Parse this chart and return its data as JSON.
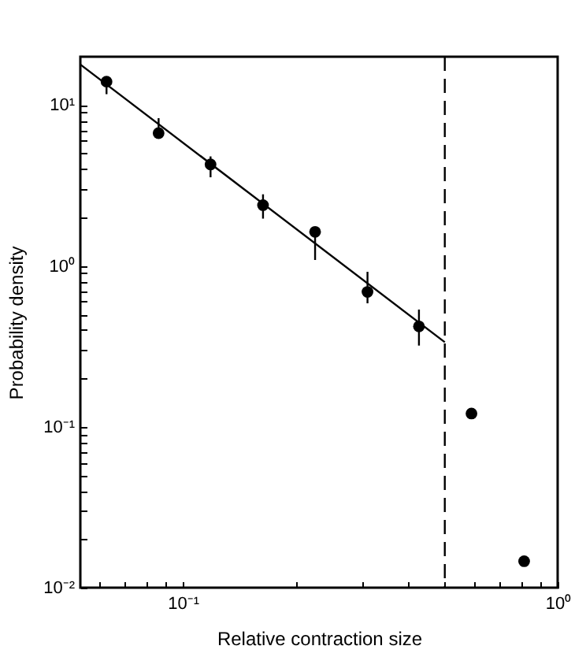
{
  "chart_data": {
    "type": "scatter",
    "xlabel": "Relative contraction size",
    "ylabel": "Probability density",
    "log": "xy",
    "grid": false,
    "xlim": [
      0.0533,
      1
    ],
    "ylim": [
      0.01,
      20
    ],
    "xticks": [
      {
        "value": 0.06,
        "label": null
      },
      {
        "value": 0.07,
        "label": null
      },
      {
        "value": 0.08,
        "label": null
      },
      {
        "value": 0.09,
        "label": null
      },
      {
        "value": 0.1,
        "label": "10⁻¹"
      },
      {
        "value": 0.2,
        "label": null
      },
      {
        "value": 0.3,
        "label": null
      },
      {
        "value": 0.4,
        "label": null
      },
      {
        "value": 0.5,
        "label": null
      },
      {
        "value": 0.6,
        "label": null
      },
      {
        "value": 0.7,
        "label": null
      },
      {
        "value": 0.8,
        "label": null
      },
      {
        "value": 0.9,
        "label": null
      },
      {
        "value": 1,
        "label": "10⁰"
      }
    ],
    "yticks": [
      {
        "value": 0.01,
        "label": "10⁻²"
      },
      {
        "value": 0.02,
        "label": null
      },
      {
        "value": 0.03,
        "label": null
      },
      {
        "value": 0.04,
        "label": null
      },
      {
        "value": 0.05,
        "label": null
      },
      {
        "value": 0.06,
        "label": null
      },
      {
        "value": 0.07,
        "label": null
      },
      {
        "value": 0.08,
        "label": null
      },
      {
        "value": 0.09,
        "label": null
      },
      {
        "value": 0.1,
        "label": "10⁻¹"
      },
      {
        "value": 0.2,
        "label": null
      },
      {
        "value": 0.3,
        "label": null
      },
      {
        "value": 0.4,
        "label": null
      },
      {
        "value": 0.5,
        "label": null
      },
      {
        "value": 0.6,
        "label": null
      },
      {
        "value": 0.7,
        "label": null
      },
      {
        "value": 0.8,
        "label": null
      },
      {
        "value": 0.9,
        "label": null
      },
      {
        "value": 1,
        "label": "10⁰"
      },
      {
        "value": 2,
        "label": null
      },
      {
        "value": 3,
        "label": null
      },
      {
        "value": 4,
        "label": null
      },
      {
        "value": 5,
        "label": null
      },
      {
        "value": 6,
        "label": null
      },
      {
        "value": 7,
        "label": null
      },
      {
        "value": 8,
        "label": null
      },
      {
        "value": 9,
        "label": null
      },
      {
        "value": 10,
        "label": "10¹"
      }
    ],
    "series": [
      {
        "type": "scatter",
        "color": "#000000",
        "marker": "circle",
        "x": [
          0.0626,
          0.0862,
          0.1186,
          0.1637,
          0.2254,
          0.311,
          0.4266,
          0.589,
          0.814
        ],
        "values": [
          14.0,
          6.7,
          4.28,
          2.39,
          1.63,
          0.69,
          0.421,
          0.121,
          0.0146
        ],
        "errors": [
          [
            11.7,
            15.0
          ],
          [
            6.3,
            8.3
          ],
          [
            3.56,
            4.8
          ],
          [
            1.97,
            2.79
          ],
          [
            1.09,
            1.75
          ],
          [
            0.586,
            0.92
          ],
          [
            0.32,
            0.536
          ],
          null,
          null
        ]
      },
      {
        "type": "line",
        "color": "#000000",
        "line_style": "solid",
        "x": [
          0.0533,
          0.5
        ],
        "values": [
          17.9,
          0.336
        ]
      }
    ],
    "ref_lines": [
      {
        "axis": "x",
        "value": 0.5,
        "line_style": "dashed",
        "color": "#000000"
      }
    ]
  }
}
